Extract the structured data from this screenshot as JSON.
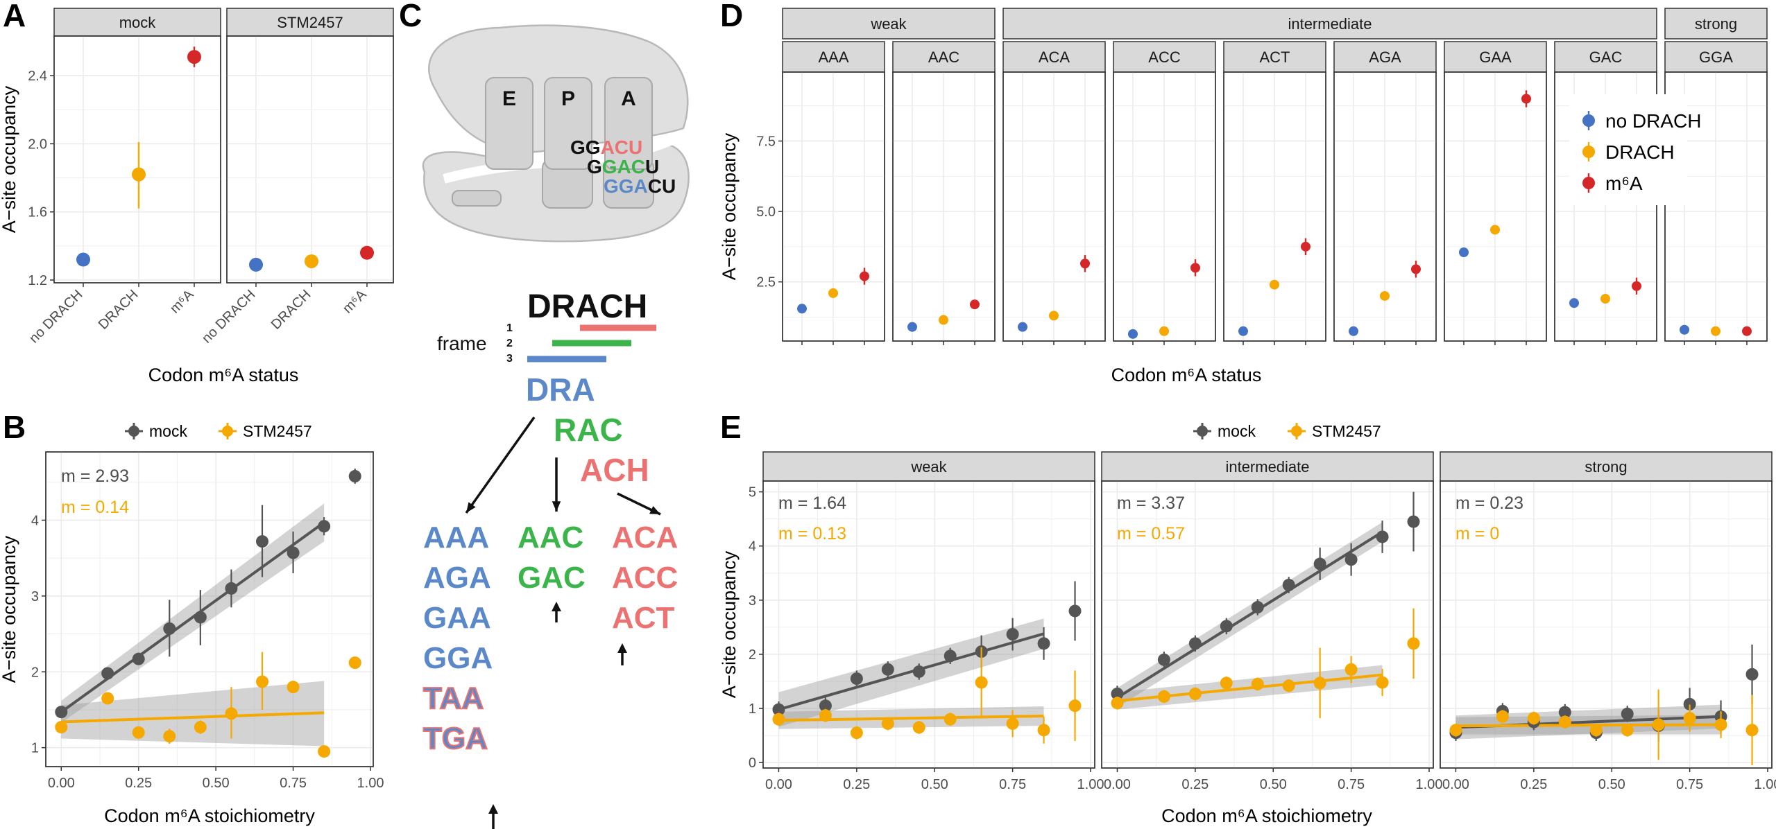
{
  "colors": {
    "no_drach": "#4472C4",
    "drach": "#F5A800",
    "m6a": "#D62728",
    "mock": "#555555",
    "stm": "#F5A800",
    "frame1": "#EB7270",
    "frame2": "#3BB54A",
    "frame3": "#5B88C8"
  },
  "panel_labels": [
    "A",
    "B",
    "C",
    "D",
    "E"
  ],
  "panel_a": {
    "facets": [
      "mock",
      "STM2457"
    ],
    "categories": [
      "no DRACH",
      "DRACH",
      "m⁶A"
    ],
    "yticks": [
      "1.2",
      "1.6",
      "2.0",
      "2.4"
    ],
    "ylabel": "A−site occupancy",
    "xlabel": "Codon m⁶A status"
  },
  "panel_b": {
    "legend": [
      "mock",
      "STM2457"
    ],
    "xticks": [
      "0.00",
      "0.25",
      "0.50",
      "0.75",
      "1.00"
    ],
    "yticks": [
      "1",
      "2",
      "3",
      "4"
    ],
    "slope_mock": "m = 2.93",
    "slope_stm": "m = 0.14",
    "ylabel": "A−site occupancy",
    "xlabel": "Codon m⁶A stoichiometry"
  },
  "panel_c": {
    "sites": [
      "E",
      "P",
      "A"
    ],
    "codon_rows": [
      [
        {
          "t": "GG",
          "c": "k"
        },
        {
          "t": "ACU",
          "c": "r"
        }
      ],
      [
        {
          "t": "G",
          "c": "k"
        },
        {
          "t": "GAC",
          "c": "g"
        },
        {
          "t": "U",
          "c": "k"
        }
      ],
      [
        {
          "t": "GGA",
          "c": "b"
        },
        {
          "t": "CU",
          "c": "k"
        }
      ]
    ],
    "motif": "DRACH",
    "frame_label": "frame",
    "frame_numbers": [
      "1",
      "2",
      "3"
    ],
    "triplets": [
      "DRA",
      "RAC",
      "ACH"
    ],
    "codons_frame3": [
      "AAA",
      "AGA",
      "GAA",
      "GGA",
      "TAA",
      "TGA"
    ],
    "codons_frame2": [
      "AAC",
      "GAC"
    ],
    "codons_frame1": [
      "ACA",
      "ACC",
      "ACT"
    ]
  },
  "panel_d": {
    "groups": [
      "weak",
      "intermediate",
      "strong"
    ],
    "codons": [
      "AAA",
      "AAC",
      "ACA",
      "ACC",
      "ACT",
      "AGA",
      "GAA",
      "GAC",
      "GGA"
    ],
    "yticks": [
      "2.5",
      "5.0",
      "7.5"
    ],
    "legend": [
      "no DRACH",
      "DRACH",
      "m⁶A"
    ],
    "ylabel": "A−site occupancy",
    "xlabel": "Codon m⁶A status"
  },
  "panel_e": {
    "legend": [
      "mock",
      "STM2457"
    ],
    "facets": [
      "weak",
      "intermediate",
      "strong"
    ],
    "slopes_mock": [
      "m = 1.64",
      "m = 3.37",
      "m = 0.23"
    ],
    "slopes_stm": [
      "m = 0.13",
      "m = 0.57",
      "m = 0"
    ],
    "xticks": [
      "0.00",
      "0.25",
      "0.50",
      "0.75",
      "1.00"
    ],
    "yticks": [
      "0",
      "1",
      "2",
      "3",
      "4",
      "5"
    ],
    "ylabel": "A−site occupancy",
    "xlabel": "Codon m⁶A stoichiometry"
  },
  "chart_data": [
    {
      "type": "scatter",
      "panel": "A",
      "facets": [
        "mock",
        "STM2457"
      ],
      "categories": [
        "no DRACH",
        "DRACH",
        "m⁶A"
      ],
      "ylim": [
        1.2,
        2.6
      ],
      "series": [
        {
          "facet": "mock",
          "values": [
            1.32,
            1.82,
            2.51
          ],
          "err_lo": [
            1.29,
            1.62,
            2.45
          ],
          "err_hi": [
            1.35,
            2.01,
            2.57
          ]
        },
        {
          "facet": "STM2457",
          "values": [
            1.29,
            1.31,
            1.36
          ],
          "err_lo": [
            1.28,
            1.3,
            1.34
          ],
          "err_hi": [
            1.3,
            1.32,
            1.38
          ]
        }
      ]
    },
    {
      "type": "scatter",
      "panel": "B",
      "xlim": [
        -0.05,
        1.0
      ],
      "ylim": [
        0.75,
        4.9
      ],
      "series": [
        {
          "name": "mock",
          "x": [
            0.0,
            0.15,
            0.25,
            0.35,
            0.45,
            0.55,
            0.65,
            0.75,
            0.85,
            0.95
          ],
          "y": [
            1.47,
            1.98,
            2.17,
            2.57,
            2.72,
            3.1,
            3.72,
            3.57,
            3.92,
            4.58
          ],
          "err_lo": [
            1.43,
            1.9,
            2.1,
            2.2,
            2.35,
            2.85,
            3.25,
            3.3,
            3.8,
            4.48
          ],
          "err_hi": [
            1.51,
            2.06,
            2.24,
            2.95,
            3.08,
            3.35,
            4.2,
            3.85,
            4.04,
            4.68
          ],
          "fit": [
            1.47,
            3.97
          ]
        },
        {
          "name": "STM2457",
          "x": [
            0.0,
            0.15,
            0.25,
            0.35,
            0.45,
            0.55,
            0.65,
            0.75,
            0.85,
            0.95
          ],
          "y": [
            1.27,
            1.65,
            1.2,
            1.15,
            1.27,
            1.45,
            1.87,
            1.8,
            0.95,
            2.12
          ],
          "err_lo": [
            1.22,
            1.58,
            1.14,
            1.05,
            1.18,
            1.12,
            1.5,
            1.74,
            0.9,
            2.05
          ],
          "err_hi": [
            1.32,
            1.72,
            1.26,
            1.25,
            1.36,
            1.8,
            2.26,
            1.86,
            1.0,
            2.19
          ],
          "fit": [
            1.34,
            1.46
          ]
        }
      ]
    },
    {
      "type": "scatter",
      "panel": "D",
      "categories": [
        "no DRACH",
        "DRACH",
        "m⁶A"
      ],
      "ylim": [
        0.4,
        9.8
      ],
      "facets": [
        {
          "group": "weak",
          "codon": "AAA",
          "values": [
            1.55,
            2.1,
            2.7
          ]
        },
        {
          "group": "weak",
          "codon": "AAC",
          "values": [
            0.9,
            1.15,
            1.7
          ]
        },
        {
          "group": "intermediate",
          "codon": "ACA",
          "values": [
            0.9,
            1.3,
            3.15
          ]
        },
        {
          "group": "intermediate",
          "codon": "ACC",
          "values": [
            0.65,
            0.75,
            3.0
          ]
        },
        {
          "group": "intermediate",
          "codon": "ACT",
          "values": [
            0.75,
            2.4,
            3.75
          ]
        },
        {
          "group": "intermediate",
          "codon": "AGA",
          "values": [
            0.75,
            2.0,
            2.95
          ]
        },
        {
          "group": "intermediate",
          "codon": "GAA",
          "values": [
            3.55,
            4.35,
            9.0
          ]
        },
        {
          "group": "intermediate",
          "codon": "GAC",
          "values": [
            1.75,
            1.9,
            2.35
          ]
        },
        {
          "group": "strong",
          "codon": "GGA",
          "values": [
            0.8,
            0.75,
            0.75
          ]
        }
      ]
    },
    {
      "type": "scatter",
      "panel": "E",
      "xlim": [
        -0.05,
        1.0
      ],
      "ylim": [
        -0.1,
        5.2
      ],
      "facets": [
        {
          "name": "weak",
          "x": [
            0.0,
            0.15,
            0.25,
            0.35,
            0.45,
            0.55,
            0.65,
            0.75,
            0.85,
            0.95
          ],
          "mock": [
            0.98,
            1.05,
            1.55,
            1.72,
            1.68,
            1.97,
            2.05,
            2.37,
            2.2,
            2.8
          ],
          "stm": [
            0.8,
            0.87,
            0.55,
            0.72,
            0.65,
            0.8,
            1.48,
            0.72,
            0.6,
            1.05
          ],
          "mock_fit": [
            0.98,
            2.38
          ],
          "stm_fit": [
            0.78,
            0.86
          ]
        },
        {
          "name": "intermediate",
          "x": [
            0.0,
            0.15,
            0.25,
            0.35,
            0.45,
            0.55,
            0.65,
            0.75,
            0.85,
            0.95
          ],
          "mock": [
            1.27,
            1.9,
            2.2,
            2.52,
            2.87,
            3.28,
            3.67,
            3.75,
            4.17,
            4.45
          ],
          "stm": [
            1.1,
            1.22,
            1.27,
            1.47,
            1.45,
            1.42,
            1.47,
            1.72,
            1.48,
            2.2
          ],
          "mock_fit": [
            1.2,
            4.26
          ],
          "stm_fit": [
            1.14,
            1.62
          ]
        },
        {
          "name": "strong",
          "x": [
            0.0,
            0.15,
            0.25,
            0.35,
            0.45,
            0.55,
            0.65,
            0.75,
            0.85,
            0.95
          ],
          "mock": [
            0.55,
            0.95,
            0.75,
            0.93,
            0.55,
            0.9,
            0.68,
            1.08,
            0.85,
            1.63
          ],
          "stm": [
            0.6,
            0.85,
            0.82,
            0.75,
            0.6,
            0.6,
            0.7,
            0.82,
            0.7,
            0.6
          ],
          "mock_fit": [
            0.65,
            0.85
          ],
          "stm_fit": [
            0.68,
            0.7
          ]
        }
      ]
    }
  ]
}
